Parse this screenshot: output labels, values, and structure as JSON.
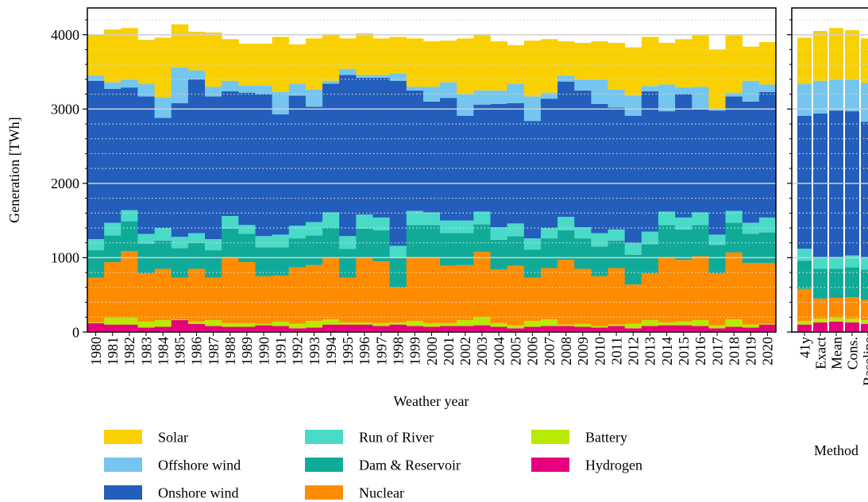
{
  "chart_data": [
    {
      "type": "stacked-bar",
      "y_label": "Generation [TWh]",
      "x_label": "Weather year",
      "categories": [
        "1980",
        "1981",
        "1982",
        "1983",
        "1984",
        "1985",
        "1986",
        "1987",
        "1988",
        "1989",
        "1990",
        "1991",
        "1992",
        "1993",
        "1994",
        "1995",
        "1996",
        "1997",
        "1998",
        "1999",
        "2000",
        "2001",
        "2002",
        "2003",
        "2004",
        "2005",
        "2006",
        "2007",
        "2008",
        "2009",
        "2010",
        "2011",
        "2012",
        "2013",
        "2014",
        "2015",
        "2016",
        "2017",
        "2018",
        "2019",
        "2020"
      ],
      "ylim": [
        0,
        4360
      ],
      "yticks": [
        0,
        1000,
        2000,
        3000,
        4000
      ],
      "minor_yticks": [
        200,
        400,
        600,
        800,
        1200,
        1400,
        1600,
        1800,
        2200,
        2400,
        2600,
        2800,
        3200,
        3400,
        3600,
        3800,
        4200
      ],
      "grid": true,
      "series": [
        {
          "name": "Solar",
          "color": "#f9d002",
          "values": [
            550,
            710,
            690,
            590,
            800,
            580,
            520,
            730,
            560,
            560,
            560,
            740,
            530,
            690,
            630,
            410,
            560,
            490,
            490,
            650,
            610,
            560,
            750,
            760,
            660,
            520,
            750,
            720,
            460,
            490,
            510,
            630,
            650,
            660,
            560,
            650,
            690,
            800,
            770,
            460,
            570
          ]
        },
        {
          "name": "Offshore wind",
          "color": "#74c6f0",
          "values": [
            70,
            90,
            110,
            170,
            280,
            480,
            120,
            130,
            140,
            100,
            120,
            300,
            160,
            230,
            40,
            80,
            40,
            40,
            100,
            50,
            200,
            210,
            290,
            190,
            180,
            260,
            330,
            80,
            80,
            150,
            330,
            240,
            270,
            70,
            360,
            90,
            300,
            20,
            50,
            280,
            100
          ]
        },
        {
          "name": "Onshore wind",
          "color": "#235ebc",
          "values": [
            2130,
            1800,
            1650,
            1850,
            1480,
            1800,
            2070,
            1920,
            1680,
            1780,
            1910,
            1620,
            1750,
            1550,
            1730,
            2170,
            1840,
            1880,
            2220,
            1620,
            1490,
            1650,
            1410,
            1440,
            1660,
            1620,
            1580,
            1740,
            1820,
            1840,
            1740,
            1640,
            1710,
            1890,
            1350,
            1660,
            1390,
            1670,
            1540,
            1630,
            1690
          ]
        },
        {
          "name": "Run of River",
          "color": "#4adbc8",
          "values": [
            150,
            170,
            150,
            130,
            170,
            150,
            130,
            150,
            170,
            120,
            150,
            170,
            170,
            180,
            210,
            170,
            190,
            170,
            160,
            190,
            170,
            170,
            170,
            170,
            170,
            170,
            150,
            140,
            180,
            150,
            180,
            150,
            160,
            170,
            180,
            160,
            170,
            140,
            160,
            150,
            200
          ]
        },
        {
          "name": "Dam & Reservoir",
          "color": "#10ab98",
          "values": [
            370,
            360,
            400,
            400,
            380,
            400,
            350,
            370,
            390,
            380,
            390,
            380,
            390,
            400,
            400,
            390,
            390,
            420,
            400,
            430,
            440,
            440,
            430,
            370,
            400,
            400,
            380,
            400,
            400,
            410,
            400,
            370,
            400,
            390,
            430,
            410,
            420,
            380,
            400,
            390,
            410
          ]
        },
        {
          "name": "Nuclear",
          "color": "#ff8c00",
          "values": [
            600,
            750,
            900,
            650,
            690,
            560,
            710,
            570,
            880,
            820,
            640,
            620,
            760,
            750,
            830,
            600,
            870,
            830,
            470,
            860,
            880,
            770,
            740,
            880,
            720,
            800,
            580,
            690,
            870,
            740,
            670,
            760,
            530,
            630,
            880,
            830,
            860,
            700,
            900,
            830,
            820
          ]
        },
        {
          "name": "Battery",
          "color": "#b8ea04",
          "values": [
            10,
            90,
            90,
            80,
            90,
            10,
            30,
            80,
            50,
            50,
            20,
            60,
            60,
            90,
            70,
            30,
            30,
            40,
            30,
            70,
            50,
            40,
            80,
            110,
            50,
            40,
            80,
            90,
            20,
            40,
            20,
            20,
            60,
            80,
            40,
            50,
            80,
            40,
            100,
            40,
            10
          ]
        },
        {
          "name": "Hydrogen",
          "color": "#e6007e",
          "values": [
            120,
            100,
            100,
            60,
            70,
            160,
            110,
            80,
            70,
            70,
            90,
            80,
            50,
            60,
            100,
            100,
            100,
            80,
            100,
            80,
            70,
            80,
            80,
            90,
            70,
            50,
            70,
            80,
            80,
            70,
            60,
            80,
            50,
            80,
            90,
            90,
            80,
            50,
            70,
            60,
            100
          ]
        }
      ]
    },
    {
      "type": "stacked-bar",
      "x_label": "Method",
      "categories": [
        "41y",
        "Exact",
        "Mean",
        "Cons.",
        "Baseline"
      ],
      "ylim": [
        0,
        4360
      ],
      "series": [
        {
          "color": "#f9d002",
          "values": [
            620,
            670,
            690,
            660,
            600
          ]
        },
        {
          "color": "#74c6f0",
          "values": [
            430,
            440,
            420,
            430,
            520
          ]
        },
        {
          "color": "#235ebc",
          "values": [
            1790,
            1930,
            1970,
            1940,
            1830
          ]
        },
        {
          "color": "#4adbc8",
          "values": [
            160,
            160,
            160,
            160,
            160
          ]
        },
        {
          "color": "#10ab98",
          "values": [
            380,
            400,
            390,
            400,
            410
          ]
        },
        {
          "color": "#ff8c00",
          "values": [
            430,
            270,
            270,
            290,
            270
          ]
        },
        {
          "color": "#b8ea04",
          "values": [
            50,
            50,
            50,
            50,
            50
          ]
        },
        {
          "color": "#e6007e",
          "values": [
            100,
            130,
            140,
            130,
            110
          ]
        }
      ]
    }
  ]
}
